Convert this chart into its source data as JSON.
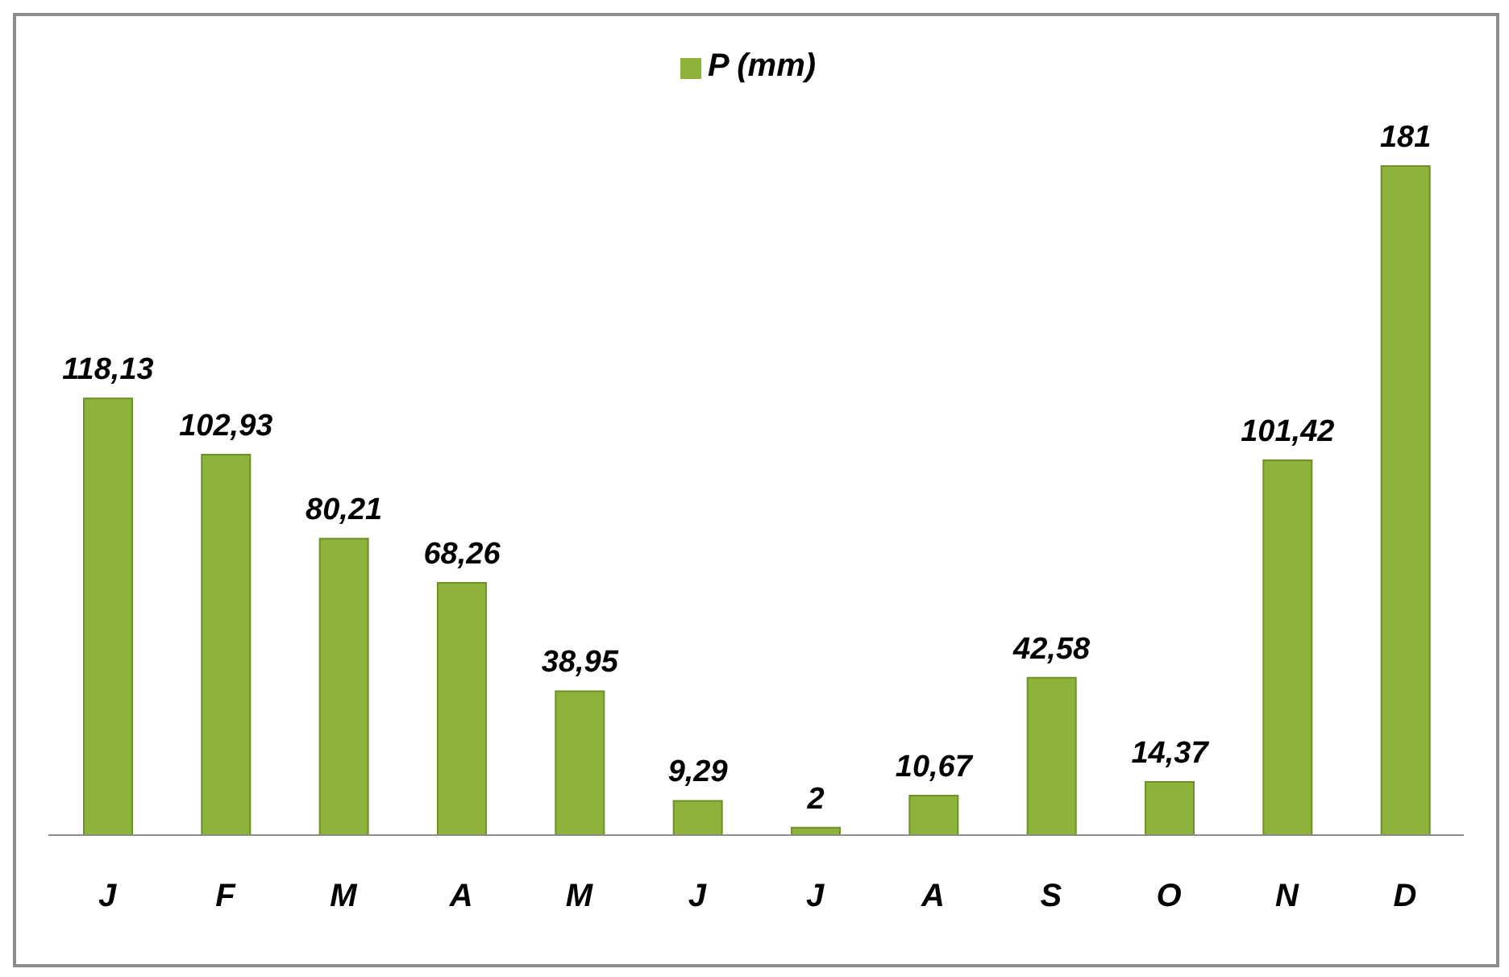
{
  "chart_data": {
    "type": "bar",
    "categories": [
      "J",
      "F",
      "M",
      "A",
      "M",
      "J",
      "J",
      "A",
      "S",
      "O",
      "N",
      "D"
    ],
    "series": [
      {
        "name": "P (mm)",
        "color": "#8db33a",
        "values": [
          118.13,
          102.93,
          80.21,
          68.26,
          38.95,
          9.29,
          2,
          10.67,
          42.58,
          14.37,
          101.42,
          181
        ],
        "value_labels": [
          "118,13",
          "102,93",
          "80,21",
          "68,26",
          "38,95",
          "9,29",
          "2",
          "10,67",
          "42,58",
          "14,37",
          "101,42",
          "181"
        ]
      }
    ],
    "legend": "top",
    "grid": false
  }
}
